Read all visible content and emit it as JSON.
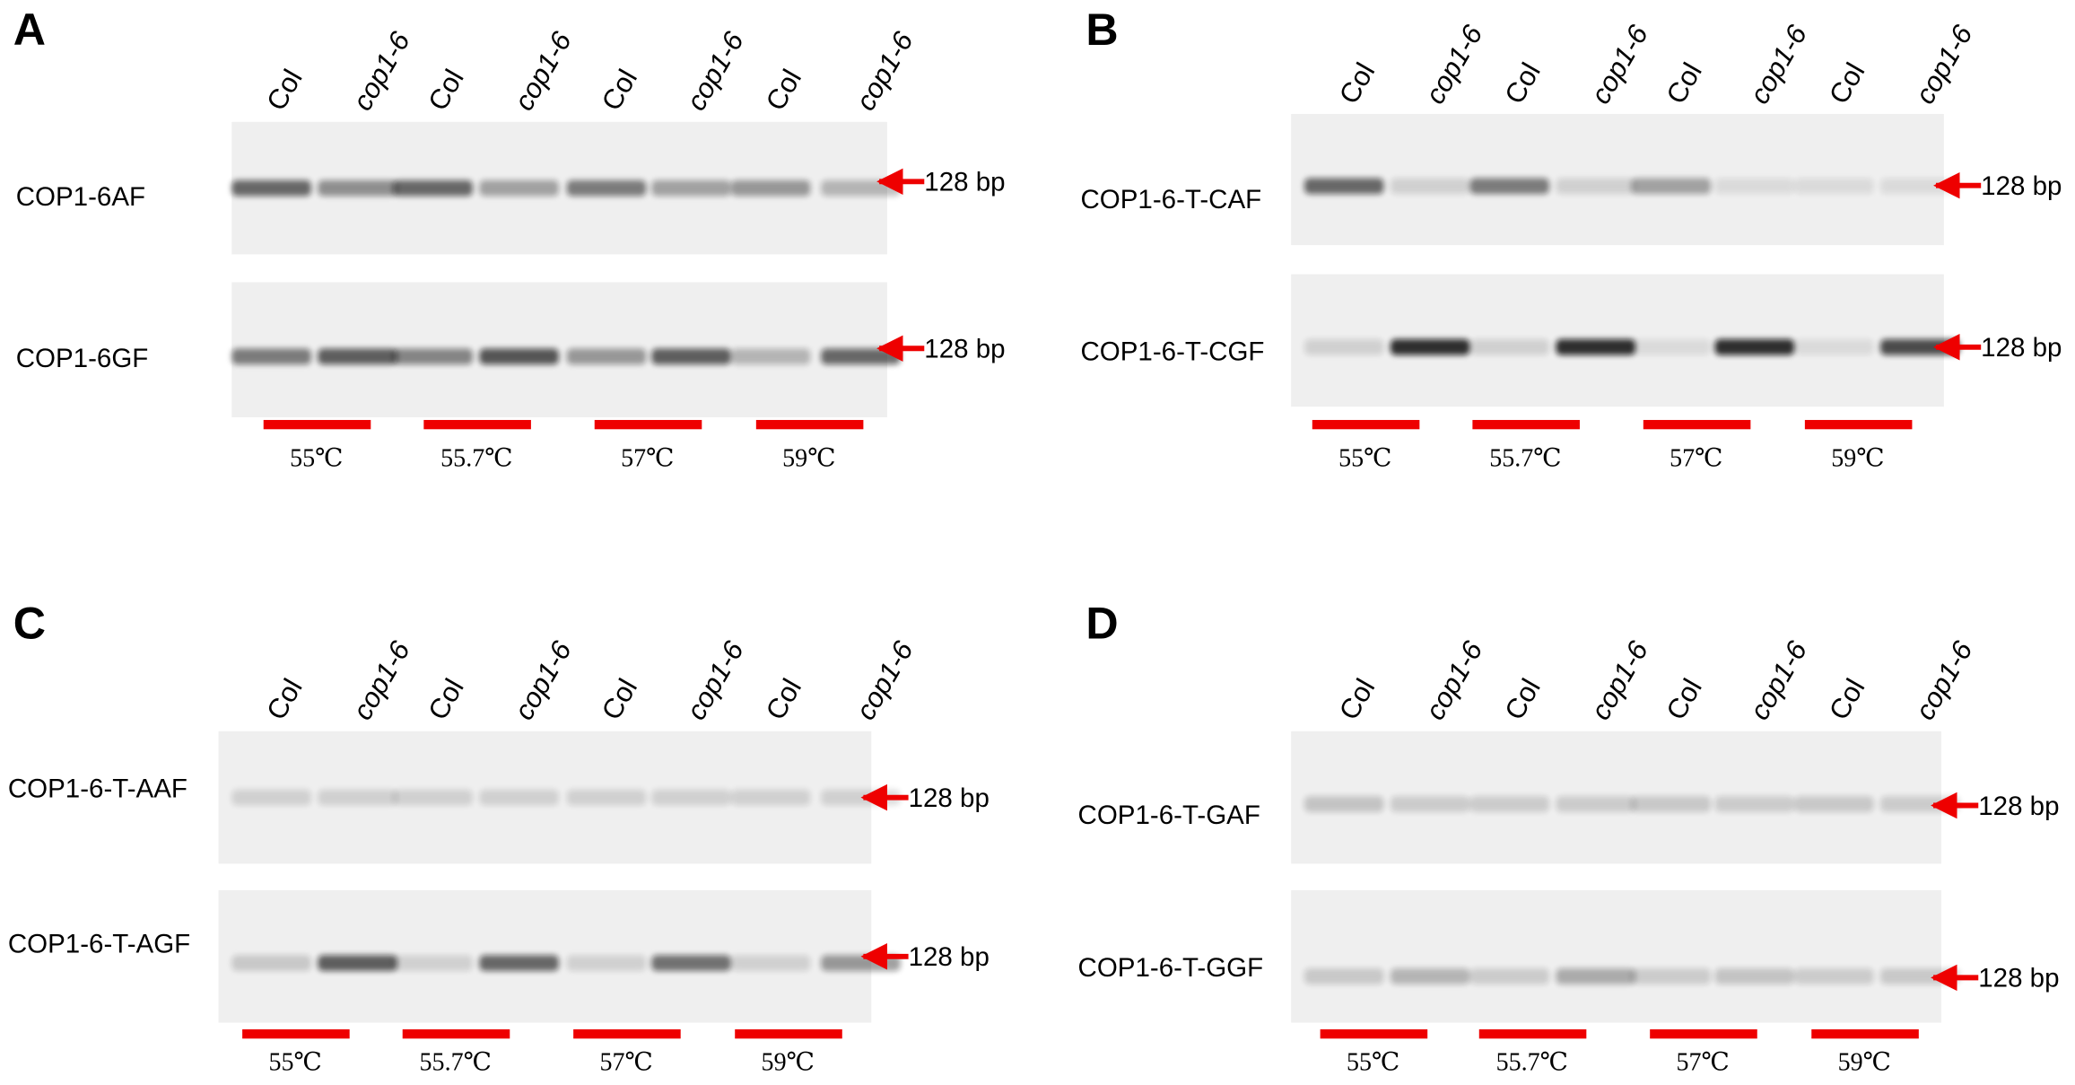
{
  "panels": [
    {
      "label": "A",
      "lanes": [
        "Col",
        "cop1-6",
        "Col",
        "cop1-6",
        "Col",
        "cop1-6",
        "Col",
        "cop1-6"
      ],
      "gels": [
        {
          "primer": "COP1-6AF",
          "marker": "128 bp"
        },
        {
          "primer": "COP1-6GF",
          "marker": "128 bp"
        }
      ],
      "temperatures": [
        "55℃",
        "55.7℃",
        "57℃",
        "59℃"
      ]
    },
    {
      "label": "B",
      "lanes": [
        "Col",
        "cop1-6",
        "Col",
        "cop1-6",
        "Col",
        "cop1-6",
        "Col",
        "cop1-6"
      ],
      "gels": [
        {
          "primer": "COP1-6-T-CAF",
          "marker": "128 bp"
        },
        {
          "primer": "COP1-6-T-CGF",
          "marker": "128 bp"
        }
      ],
      "temperatures": [
        "55℃",
        "55.7℃",
        "57℃",
        "59℃"
      ]
    },
    {
      "label": "C",
      "lanes": [
        "Col",
        "cop1-6",
        "Col",
        "cop1-6",
        "Col",
        "cop1-6",
        "Col",
        "cop1-6"
      ],
      "gels": [
        {
          "primer": "COP1-6-T-AAF",
          "marker": "128 bp"
        },
        {
          "primer": "COP1-6-T-AGF",
          "marker": "128 bp"
        }
      ],
      "temperatures": [
        "55℃",
        "55.7℃",
        "57℃",
        "59℃"
      ]
    },
    {
      "label": "D",
      "lanes": [
        "Col",
        "cop1-6",
        "Col",
        "cop1-6",
        "Col",
        "cop1-6",
        "Col",
        "cop1-6"
      ],
      "gels": [
        {
          "primer": "COP1-6-T-GAF",
          "marker": "128 bp"
        },
        {
          "primer": "COP1-6-T-GGF",
          "marker": "128 bp"
        }
      ],
      "temperatures": [
        "55℃",
        "55.7℃",
        "57℃",
        "59℃"
      ]
    }
  ]
}
